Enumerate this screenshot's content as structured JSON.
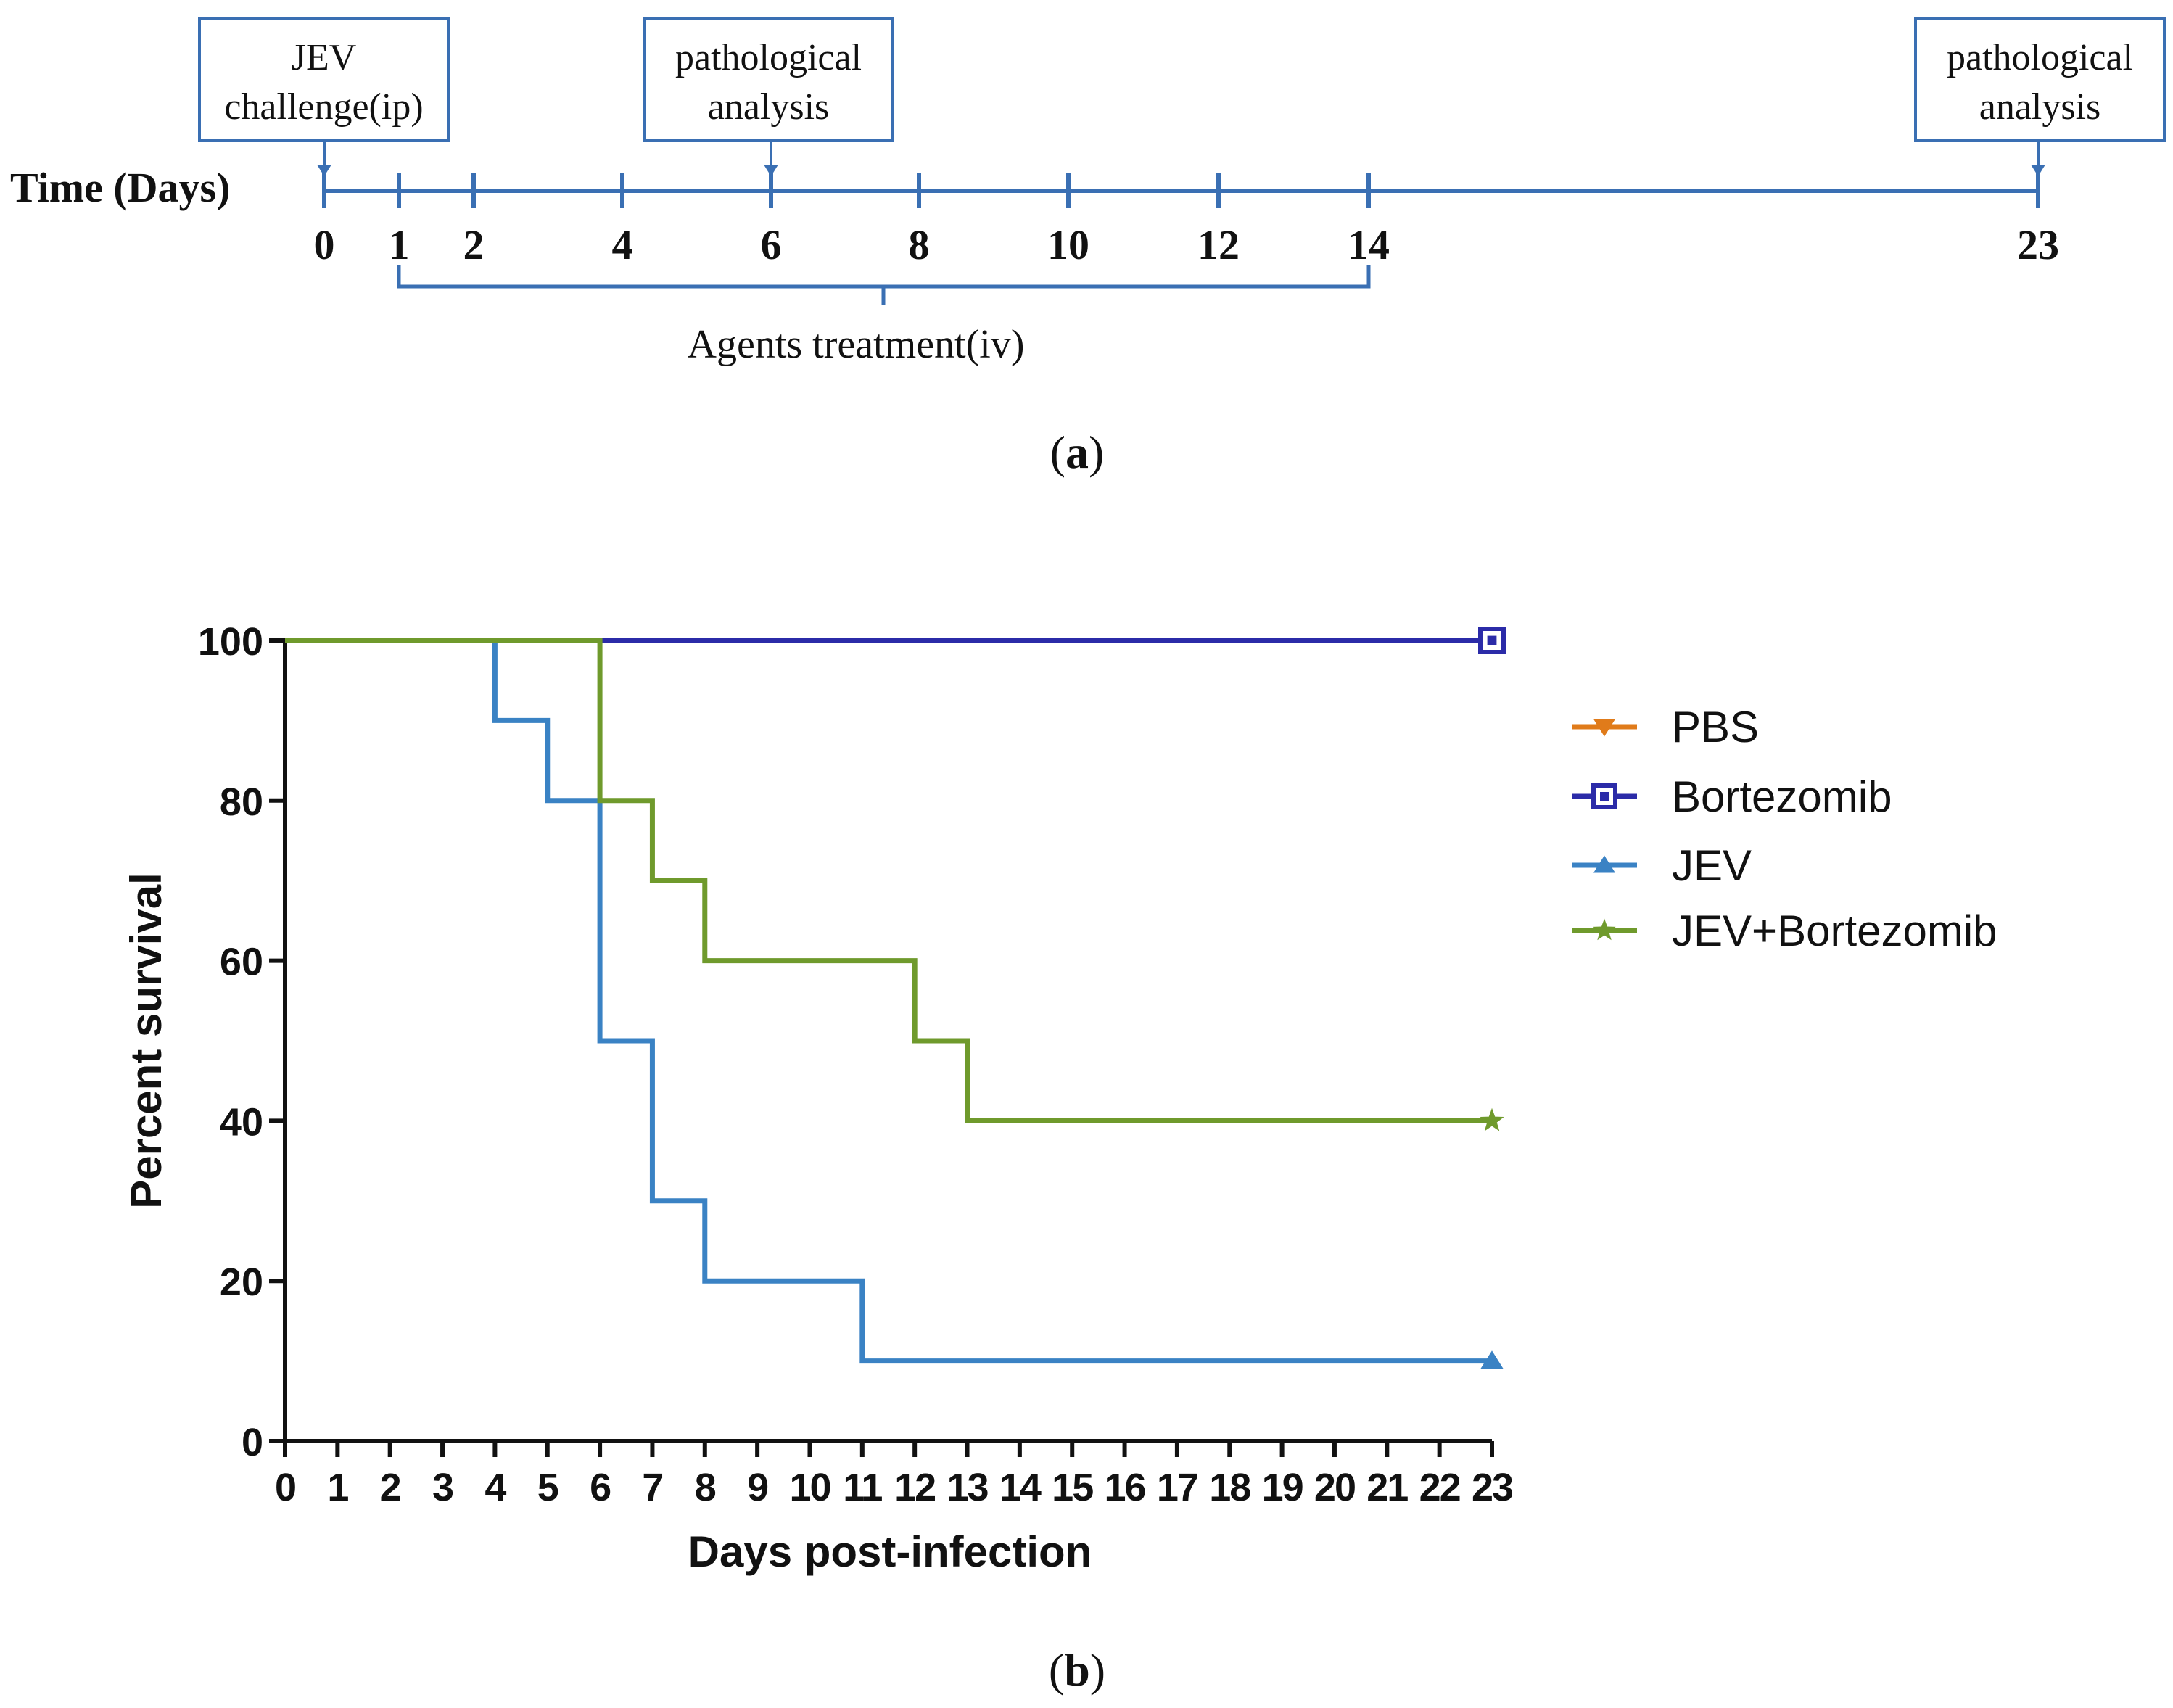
{
  "panel_a": {
    "axis_label": "Time (Days)",
    "ticks": [
      0,
      1,
      2,
      4,
      6,
      8,
      10,
      12,
      14,
      23
    ],
    "callouts": [
      {
        "line1": "JEV",
        "line2": "challenge(ip)",
        "day": 0
      },
      {
        "line1": "pathological",
        "line2": "analysis",
        "day": 6
      },
      {
        "line1": "pathological",
        "line2": "analysis",
        "day": 23
      }
    ],
    "bracket": {
      "label": "Agents treatment(iv)",
      "start_day": 1,
      "end_day": 14
    },
    "panel_label_open": "(",
    "panel_label_letter": "a",
    "panel_label_close": ")"
  },
  "panel_b": {
    "panel_label_open": "(",
    "panel_label_letter": "b",
    "panel_label_close": ")"
  },
  "chart_data": {
    "type": "line",
    "subtype": "kaplan-meier step",
    "title": "",
    "xlabel": "Days post-infection",
    "ylabel": "Percent survival",
    "xlim": [
      0,
      23
    ],
    "ylim": [
      0,
      100
    ],
    "xticks": [
      0,
      1,
      2,
      3,
      4,
      5,
      6,
      7,
      8,
      9,
      10,
      11,
      12,
      13,
      14,
      15,
      16,
      17,
      18,
      19,
      20,
      21,
      22,
      23
    ],
    "yticks": [
      0,
      20,
      40,
      60,
      80,
      100
    ],
    "grid": false,
    "legend_position": "right",
    "series": [
      {
        "name": "PBS",
        "color": "#e07b1a",
        "marker": "triangle-down",
        "x": [
          0,
          23
        ],
        "y": [
          100,
          100
        ]
      },
      {
        "name": "Bortezomib",
        "color": "#2b2ba8",
        "marker": "square-open",
        "x": [
          0,
          23
        ],
        "y": [
          100,
          100
        ]
      },
      {
        "name": "JEV",
        "color": "#3a82c4",
        "marker": "triangle-up",
        "x": [
          0,
          4,
          5,
          6,
          7,
          8,
          11,
          23
        ],
        "y": [
          100,
          90,
          80,
          50,
          30,
          20,
          10,
          10
        ]
      },
      {
        "name": "JEV+Bortezomib",
        "color": "#6f9a2c",
        "marker": "star",
        "x": [
          0,
          6,
          7,
          8,
          12,
          13,
          23
        ],
        "y": [
          100,
          80,
          70,
          60,
          50,
          40,
          40
        ]
      }
    ]
  },
  "colors": {
    "timeline": "#3a6fb3",
    "axis": "#111111",
    "text": "#111111"
  }
}
